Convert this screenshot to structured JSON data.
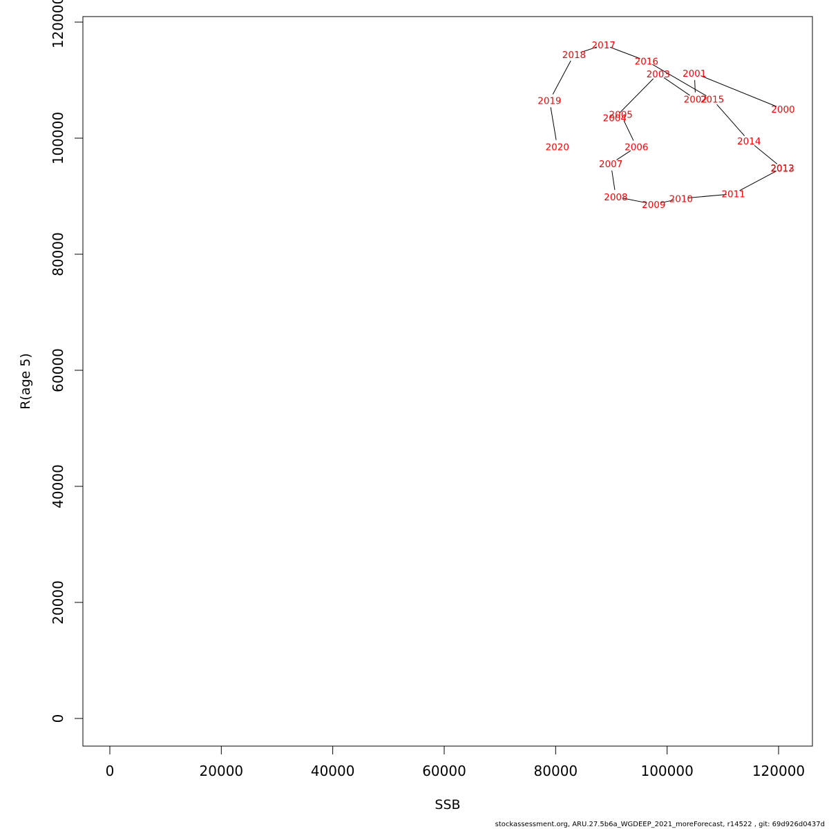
{
  "chart_data": {
    "type": "line",
    "title": "",
    "xlabel": "SSB",
    "ylabel": "R(age 5)",
    "xlim": [
      0,
      120000
    ],
    "ylim": [
      0,
      120000
    ],
    "xticks": [
      0,
      20000,
      40000,
      60000,
      80000,
      100000,
      120000
    ],
    "yticks": [
      0,
      20000,
      40000,
      60000,
      80000,
      100000,
      120000
    ],
    "grid": false,
    "legend": "none",
    "label_color": "#ff0000",
    "line_color": "#000000",
    "series": [
      {
        "points": [
          {
            "year": "2000",
            "x": 120800,
            "y": 105000
          },
          {
            "year": "2001",
            "x": 104900,
            "y": 111200
          },
          {
            "year": "2002",
            "x": 105100,
            "y": 106700
          },
          {
            "year": "2003",
            "x": 98400,
            "y": 111100
          },
          {
            "year": "2004",
            "x": 90600,
            "y": 103500
          },
          {
            "year": "2005",
            "x": 91700,
            "y": 104100
          },
          {
            "year": "2006",
            "x": 94500,
            "y": 98500
          },
          {
            "year": "2007",
            "x": 89900,
            "y": 95600
          },
          {
            "year": "2008",
            "x": 90800,
            "y": 89900
          },
          {
            "year": "2009",
            "x": 97600,
            "y": 88600
          },
          {
            "year": "2010",
            "x": 102500,
            "y": 89600
          },
          {
            "year": "2011",
            "x": 111900,
            "y": 90400
          },
          {
            "year": "2012",
            "x": 120700,
            "y": 94900
          },
          {
            "year": "2013",
            "x": 120700,
            "y": 94800
          },
          {
            "year": "2014",
            "x": 114700,
            "y": 99500
          },
          {
            "year": "2015",
            "x": 108100,
            "y": 106700
          },
          {
            "year": "2016",
            "x": 96300,
            "y": 113300
          },
          {
            "year": "2017",
            "x": 88600,
            "y": 116100
          },
          {
            "year": "2018",
            "x": 83300,
            "y": 114400
          },
          {
            "year": "2019",
            "x": 78900,
            "y": 106500
          },
          {
            "year": "2020",
            "x": 80300,
            "y": 98500
          }
        ]
      }
    ]
  },
  "footer": "stockassessment.org, ARU.27.5b6a_WGDEEP_2021_moreForecast, r14522 , git: 69d926d0437d"
}
